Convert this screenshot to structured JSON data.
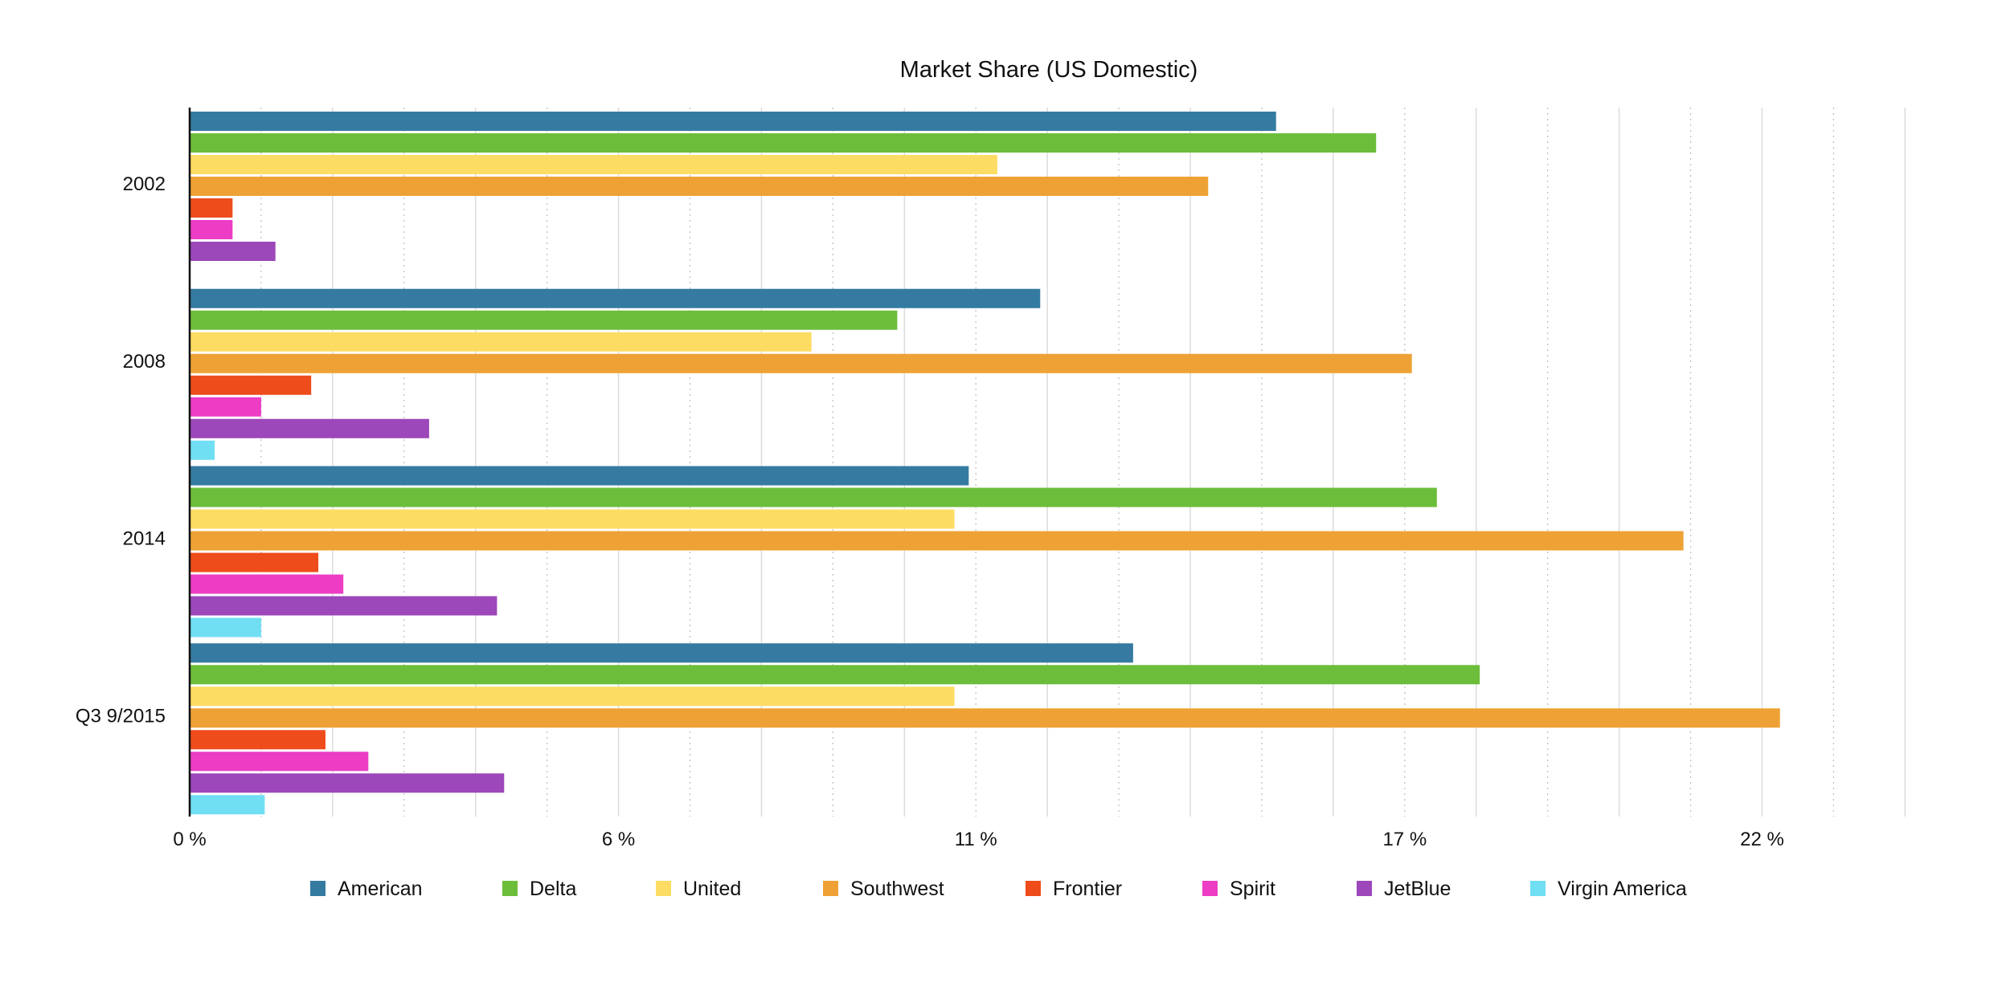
{
  "chart_data": {
    "type": "bar",
    "orientation": "horizontal",
    "title": "Market Share (US Domestic)",
    "xlabel": "",
    "ylabel": "",
    "xlim": [
      0,
      24
    ],
    "x_ticks": [
      0,
      6,
      11,
      17,
      22
    ],
    "x_tick_labels": [
      "0 %",
      "6 %",
      "11 %",
      "17 %",
      "22 %"
    ],
    "grid": true,
    "legend_position": "bottom",
    "categories": [
      "2002",
      "2008",
      "2014",
      "Q3 9/2015"
    ],
    "series": [
      {
        "name": "American",
        "color": "#357ba1",
        "values": [
          15.2,
          11.9,
          10.9,
          13.2
        ]
      },
      {
        "name": "Delta",
        "color": "#6cbe3a",
        "values": [
          16.6,
          9.9,
          17.45,
          18.05
        ]
      },
      {
        "name": "United",
        "color": "#fcdc63",
        "values": [
          11.3,
          8.7,
          10.7,
          10.7
        ]
      },
      {
        "name": "Southwest",
        "color": "#eea235",
        "values": [
          14.25,
          17.1,
          20.9,
          22.25
        ]
      },
      {
        "name": "Frontier",
        "color": "#ee4c1b",
        "values": [
          0.6,
          1.7,
          1.8,
          1.9
        ]
      },
      {
        "name": "Spirit",
        "color": "#ec3dc4",
        "values": [
          0.6,
          1.0,
          2.15,
          2.5
        ]
      },
      {
        "name": "JetBlue",
        "color": "#9c47ba",
        "values": [
          1.2,
          3.35,
          4.3,
          4.4
        ]
      },
      {
        "name": "Virgin America",
        "color": "#70dff3",
        "values": [
          null,
          0.35,
          1.0,
          1.05
        ]
      }
    ]
  }
}
